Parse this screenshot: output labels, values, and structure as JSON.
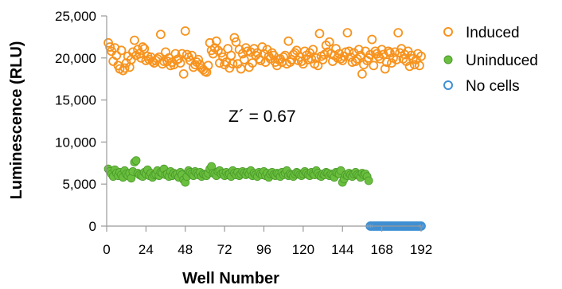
{
  "chart_data": {
    "type": "scatter",
    "xlabel": "Well Number",
    "ylabel": "Luminescence (RLU)",
    "annotation": "Z´ = 0.67",
    "xlim": [
      0,
      192
    ],
    "ylim": [
      0,
      25000
    ],
    "x_ticks": [
      0,
      24,
      48,
      72,
      96,
      120,
      144,
      168,
      192
    ],
    "x_tick_labels": [
      "0",
      "24",
      "48",
      "72",
      "96",
      "120",
      "144",
      "168",
      "192"
    ],
    "y_ticks": [
      0,
      5000,
      10000,
      15000,
      20000,
      25000
    ],
    "y_tick_labels": [
      "0",
      "5,000",
      "10,000",
      "15,000",
      "20,000",
      "25,000"
    ],
    "grid": false,
    "legend_position": "right",
    "series": [
      {
        "name": "Induced",
        "marker": "open-circle",
        "color": "#f7931e",
        "x": [
          1,
          2,
          3,
          4,
          5,
          6,
          7,
          8,
          9,
          10,
          11,
          12,
          13,
          14,
          15,
          16,
          17,
          18,
          19,
          20,
          21,
          22,
          23,
          24,
          25,
          26,
          27,
          28,
          29,
          30,
          31,
          32,
          33,
          34,
          35,
          36,
          37,
          38,
          39,
          40,
          41,
          42,
          43,
          44,
          45,
          46,
          47,
          48,
          49,
          50,
          51,
          52,
          53,
          54,
          55,
          56,
          57,
          58,
          59,
          60,
          61,
          62,
          63,
          64,
          65,
          66,
          67,
          68,
          69,
          70,
          71,
          72,
          73,
          74,
          75,
          76,
          77,
          78,
          79,
          80,
          81,
          82,
          83,
          84,
          85,
          86,
          87,
          88,
          89,
          90,
          91,
          92,
          93,
          94,
          95,
          96,
          97,
          98,
          99,
          100,
          101,
          102,
          103,
          104,
          105,
          106,
          107,
          108,
          109,
          110,
          111,
          112,
          113,
          114,
          115,
          116,
          117,
          118,
          119,
          120,
          121,
          122,
          123,
          124,
          125,
          126,
          127,
          128,
          129,
          130,
          131,
          132,
          133,
          134,
          135,
          136,
          137,
          138,
          139,
          140,
          141,
          142,
          143,
          144,
          145,
          146,
          147,
          148,
          149,
          150,
          151,
          152,
          153,
          154,
          155,
          156,
          157,
          158,
          159,
          160,
          161,
          162,
          163,
          164,
          165,
          166,
          167,
          168,
          169,
          170,
          171,
          172,
          173,
          174,
          175,
          176,
          177,
          178,
          179,
          180,
          181,
          182,
          183,
          184,
          185,
          186,
          187,
          188,
          189,
          190,
          191,
          192
        ],
        "values": [
          21800,
          21300,
          20800,
          19600,
          21200,
          20300,
          19100,
          18700,
          20900,
          18500,
          18800,
          19400,
          20200,
          18900,
          19800,
          20700,
          22100,
          20300,
          21000,
          20500,
          20000,
          21300,
          21100,
          19700,
          20200,
          19800,
          20100,
          19600,
          19400,
          19700,
          19900,
          20100,
          22800,
          19300,
          19600,
          20700,
          19600,
          20000,
          19100,
          19500,
          19200,
          20500,
          19800,
          19900,
          19400,
          20500,
          18100,
          23200,
          20400,
          20100,
          19700,
          20300,
          18900,
          19200,
          19500,
          19800,
          19200,
          18800,
          18600,
          18400,
          18300,
          19100,
          21800,
          20900,
          20500,
          21200,
          22000,
          20900,
          19400,
          20600,
          20100,
          19200,
          19500,
          21100,
          18800,
          20300,
          19300,
          22400,
          21900,
          19300,
          21000,
          18700,
          20500,
          19800,
          21200,
          20800,
          18900,
          20700,
          19400,
          21100,
          20300,
          20600,
          19900,
          19700,
          21300,
          20500,
          19500,
          21000,
          20200,
          19900,
          20600,
          20300,
          19500,
          19100,
          19800,
          19900,
          19500,
          20100,
          20300,
          19300,
          22000,
          19500,
          19800,
          20400,
          20600,
          20900,
          19700,
          20100,
          19600,
          19300,
          20800,
          20300,
          19800,
          20600,
          19900,
          21000,
          19300,
          20000,
          19100,
          22900,
          20200,
          19800,
          20400,
          21500,
          20700,
          21900,
          20500,
          19600,
          20300,
          21100,
          20000,
          20500,
          19900,
          19700,
          20200,
          20700,
          23000,
          20800,
          20100,
          19500,
          20600,
          19600,
          19900,
          21000,
          20300,
          18100,
          19200,
          20800,
          19700,
          20000,
          20400,
          22200,
          19100,
          20800,
          20500,
          20200,
          19900,
          21000,
          20400,
          18700,
          19500,
          20800,
          20600,
          19400,
          20000,
          20700,
          19800,
          23000,
          20600,
          21100,
          19900,
          20400,
          19600,
          20800,
          19000,
          20300,
          19900,
          19200,
          19800,
          20500,
          19100,
          20200
        ]
      },
      {
        "name": "Uninduced",
        "marker": "filled-circle",
        "color": "#6abf3e",
        "x": [
          1,
          2,
          3,
          4,
          5,
          6,
          7,
          8,
          9,
          10,
          11,
          12,
          13,
          14,
          15,
          16,
          17,
          18,
          19,
          20,
          21,
          22,
          23,
          24,
          25,
          26,
          27,
          28,
          29,
          30,
          31,
          32,
          33,
          34,
          35,
          36,
          37,
          38,
          39,
          40,
          41,
          42,
          43,
          44,
          45,
          46,
          47,
          48,
          49,
          50,
          51,
          52,
          53,
          54,
          55,
          56,
          57,
          58,
          59,
          60,
          61,
          62,
          63,
          64,
          65,
          66,
          67,
          68,
          69,
          70,
          71,
          72,
          73,
          74,
          75,
          76,
          77,
          78,
          79,
          80,
          81,
          82,
          83,
          84,
          85,
          86,
          87,
          88,
          89,
          90,
          91,
          92,
          93,
          94,
          95,
          96,
          97,
          98,
          99,
          100,
          101,
          102,
          103,
          104,
          105,
          106,
          107,
          108,
          109,
          110,
          111,
          112,
          113,
          114,
          115,
          116,
          117,
          118,
          119,
          120,
          121,
          122,
          123,
          124,
          125,
          126,
          127,
          128,
          129,
          130,
          131,
          132,
          133,
          134,
          135,
          136,
          137,
          138,
          139,
          140,
          141,
          142,
          143,
          144,
          145,
          146,
          147,
          148,
          149,
          150,
          151,
          152,
          153,
          154,
          155,
          156,
          157,
          158,
          159,
          160
        ],
        "values": [
          6800,
          6500,
          6200,
          5900,
          6700,
          6300,
          6000,
          6400,
          6100,
          5800,
          6600,
          6200,
          6000,
          6300,
          5700,
          6500,
          7600,
          7800,
          6300,
          6100,
          6000,
          5900,
          6400,
          6200,
          6700,
          6000,
          6300,
          5800,
          6100,
          6200,
          6600,
          6000,
          6400,
          6300,
          6800,
          6100,
          6200,
          5900,
          6500,
          6000,
          6300,
          6100,
          6200,
          5800,
          6400,
          6100,
          5500,
          5200,
          5900,
          6600,
          6400,
          6200,
          6000,
          6500,
          6300,
          6100,
          6400,
          5900,
          6200,
          6100,
          6000,
          6300,
          6800,
          7100,
          6300,
          6200,
          6000,
          6500,
          6600,
          6200,
          6300,
          6000,
          6400,
          6100,
          6200,
          5900,
          6600,
          6300,
          6100,
          6400,
          6000,
          6200,
          6500,
          6300,
          6100,
          6400,
          6200,
          6600,
          6000,
          6300,
          6100,
          5900,
          6400,
          6200,
          6100,
          6500,
          6000,
          6300,
          5800,
          6200,
          6400,
          6100,
          6000,
          6300,
          6200,
          5900,
          6400,
          6100,
          6300,
          6600,
          6000,
          6200,
          6100,
          5900,
          6200,
          6400,
          6300,
          6100,
          6000,
          6200,
          6500,
          6300,
          6100,
          6000,
          6400,
          6200,
          6100,
          6600,
          6300,
          6000,
          5900,
          6200,
          6100,
          6400,
          6300,
          6000,
          6200,
          6100,
          5800,
          6400,
          6300,
          6200,
          6600,
          5200,
          5600,
          6100,
          6000,
          6300,
          6100,
          5900,
          6200,
          6400,
          6100,
          6000,
          5800,
          6300,
          6100,
          6200,
          5900,
          5400
        ]
      },
      {
        "name": "No cells",
        "marker": "open-circle",
        "color": "#3f8fd2",
        "x": [
          161,
          162,
          163,
          164,
          165,
          166,
          167,
          168,
          169,
          170,
          171,
          172,
          173,
          174,
          175,
          176,
          177,
          178,
          179,
          180,
          181,
          182,
          183,
          184,
          185,
          186,
          187,
          188,
          189,
          190,
          191,
          192
        ],
        "values": [
          0,
          0,
          0,
          0,
          0,
          0,
          0,
          0,
          0,
          0,
          0,
          0,
          0,
          0,
          0,
          0,
          0,
          0,
          0,
          0,
          0,
          0,
          0,
          0,
          0,
          0,
          0,
          0,
          0,
          0,
          0,
          0
        ]
      }
    ]
  }
}
